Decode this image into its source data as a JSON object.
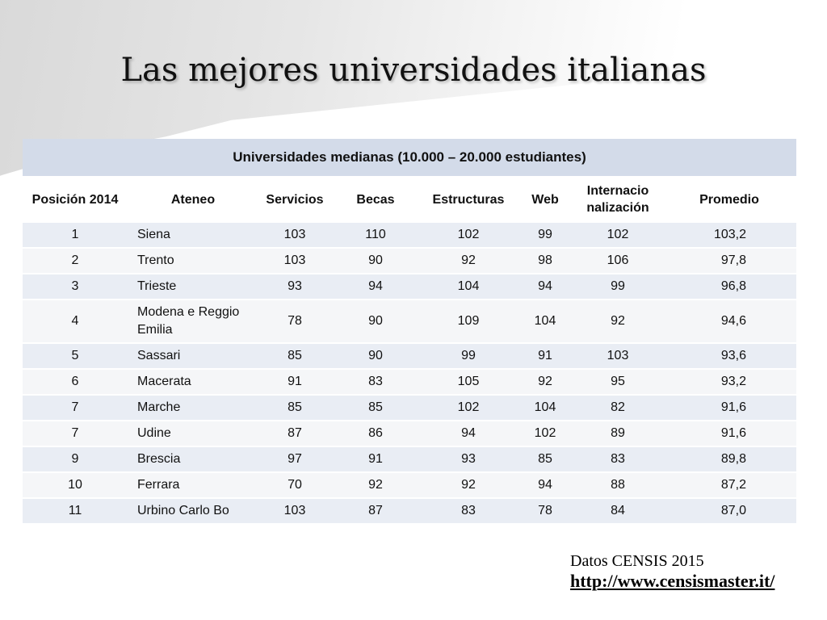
{
  "slide": {
    "title": "Las mejores universidades italianas"
  },
  "table": {
    "caption": "Universidades medianas (10.000 – 20.000 estudiantes)",
    "headers": [
      "Posición 2014",
      "Ateneo",
      "Servicios",
      "Becas",
      "Estructuras",
      "Web",
      "Internacio nalización",
      "Promedio"
    ],
    "rows": [
      [
        "1",
        "Siena",
        "103",
        "110",
        "102",
        "99",
        "102",
        "103,2"
      ],
      [
        "2",
        "Trento",
        "103",
        "90",
        "92",
        "98",
        "106",
        "97,8"
      ],
      [
        "3",
        "Trieste",
        "93",
        "94",
        "104",
        "94",
        "99",
        "96,8"
      ],
      [
        "4",
        "Modena e Reggio Emilia",
        "78",
        "90",
        "109",
        "104",
        "92",
        "94,6"
      ],
      [
        "5",
        "Sassari",
        "85",
        "90",
        "99",
        "91",
        "103",
        "93,6"
      ],
      [
        "6",
        "Macerata",
        "91",
        "83",
        "105",
        "92",
        "95",
        "93,2"
      ],
      [
        "7",
        "Marche",
        "85",
        "85",
        "102",
        "104",
        "82",
        "91,6"
      ],
      [
        "7",
        "Udine",
        "87",
        "86",
        "94",
        "102",
        "89",
        "91,6"
      ],
      [
        "9",
        "Brescia",
        "97",
        "91",
        "93",
        "85",
        "83",
        "89,8"
      ],
      [
        "10",
        "Ferrara",
        "70",
        "92",
        "92",
        "94",
        "88",
        "87,2"
      ],
      [
        "11",
        "Urbino Carlo Bo",
        "103",
        "87",
        "83",
        "78",
        "84",
        "87,0"
      ]
    ]
  },
  "source": {
    "label": "Datos CENSIS 2015",
    "link": "http://www.censismaster.it/"
  },
  "colors": {
    "caption_bg": "#d3dbe9",
    "row_dark": "#e9edf4",
    "row_light": "#f5f6f8"
  }
}
